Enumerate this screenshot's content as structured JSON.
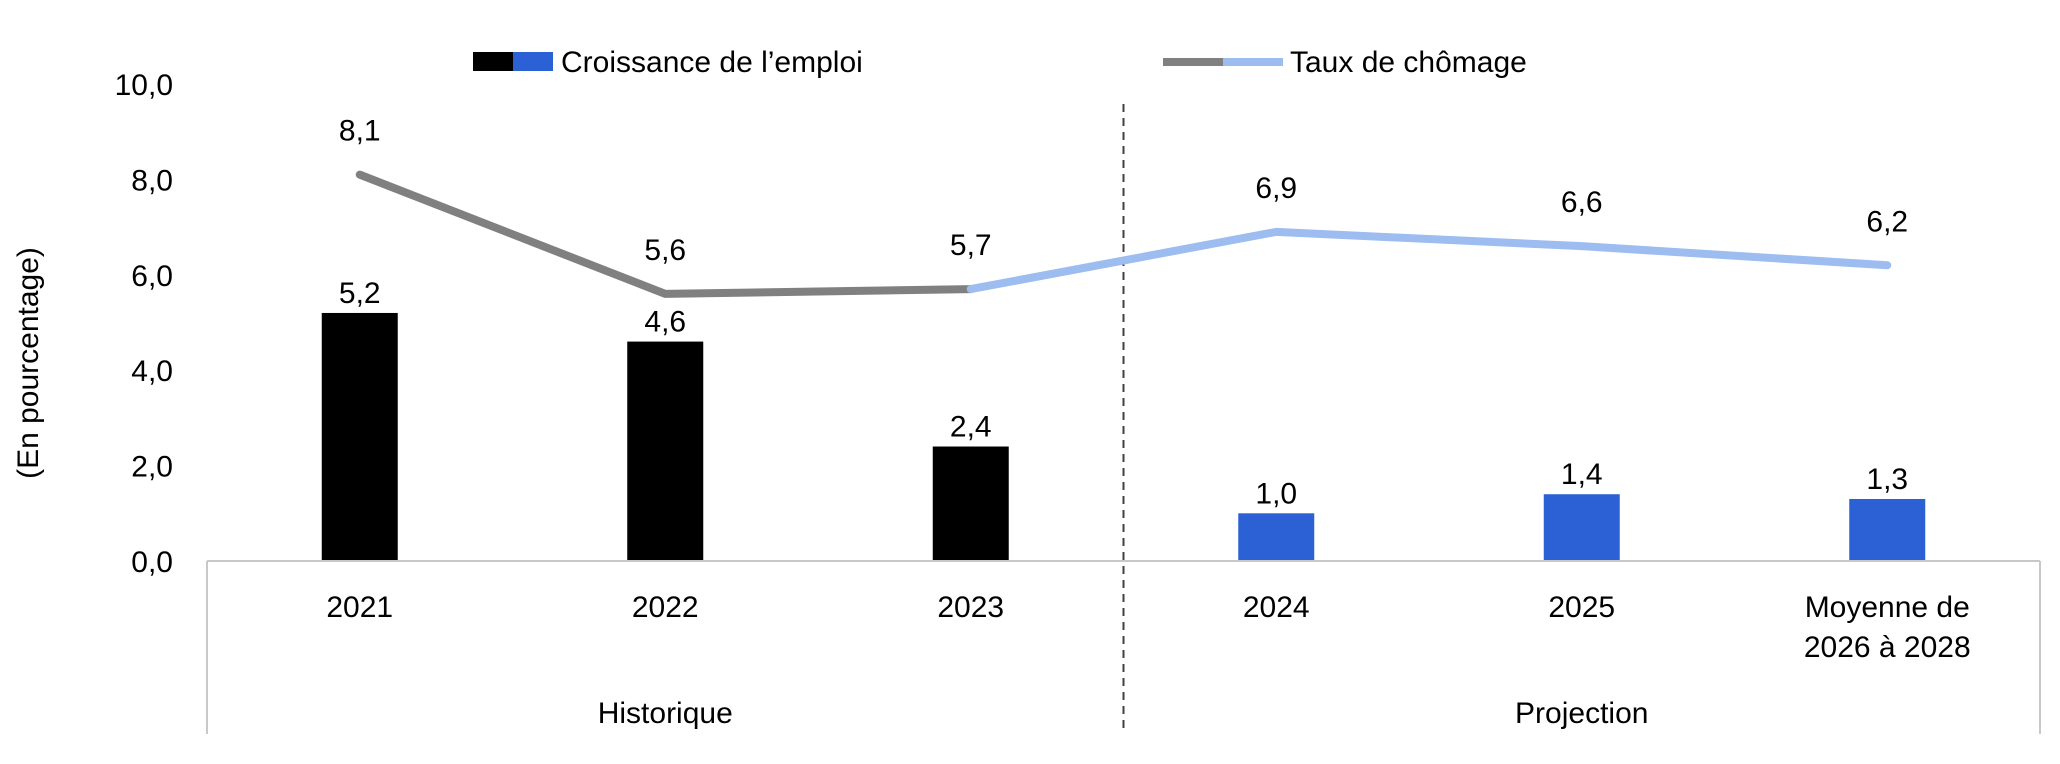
{
  "chart_data": {
    "type": "bar",
    "categories": [
      "2021",
      "2022",
      "2023",
      "2024",
      "2025",
      "Moyenne de 2026 à 2028"
    ],
    "category_lines": [
      [
        "2021"
      ],
      [
        "2022"
      ],
      [
        "2023"
      ],
      [
        "2024"
      ],
      [
        "2025"
      ],
      [
        "Moyenne de",
        "2026 à 2028"
      ]
    ],
    "groups": [
      {
        "label": "Historique",
        "categories": [
          "2021",
          "2022",
          "2023"
        ]
      },
      {
        "label": "Projection",
        "categories": [
          "2024",
          "2025",
          "Moyenne de 2026 à 2028"
        ]
      }
    ],
    "series": [
      {
        "name": "Croissance de l’emploi",
        "kind": "bar",
        "values": [
          5.2,
          4.6,
          2.4,
          1.0,
          1.4,
          1.3
        ],
        "colors": {
          "historique": "#000000",
          "projection": "#2c61d6"
        }
      },
      {
        "name": "Taux de chômage",
        "kind": "line",
        "values": [
          8.1,
          5.6,
          5.7,
          6.9,
          6.6,
          6.2
        ],
        "colors": {
          "historique": "#808080",
          "projection": "#9dbcf0"
        }
      }
    ],
    "data_labels": {
      "bars": [
        "5,2",
        "4,6",
        "2,4",
        "1,0",
        "1,4",
        "1,3"
      ],
      "line": [
        "8,1",
        "5,6",
        "5,7",
        "6,9",
        "6,6",
        "6,2"
      ]
    },
    "ylabel": "(En pourcentage)",
    "ylim": [
      0,
      10
    ],
    "yticks": [
      "0,0",
      "2,0",
      "4,0",
      "6,0",
      "8,0",
      "10,0"
    ],
    "grid": false,
    "legend_position": "top",
    "separator": "dashed line between 2023 and 2024"
  }
}
